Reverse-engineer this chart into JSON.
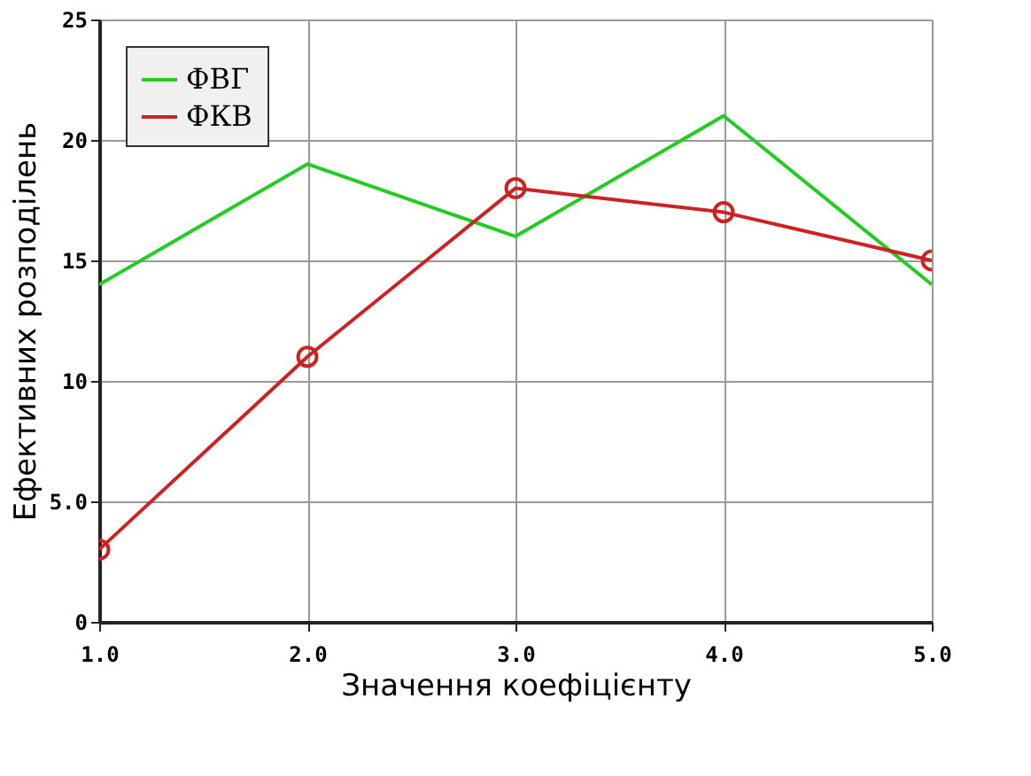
{
  "chart_data": {
    "type": "line",
    "xlabel": "Значення коефіцієнту",
    "ylabel": "Ефективних розподілень",
    "x": [
      1,
      2,
      3,
      4,
      5
    ],
    "series": [
      {
        "name": "ФВГ",
        "color": "#22cc22",
        "values": [
          14,
          19,
          16,
          21,
          14
        ],
        "marker": "none"
      },
      {
        "name": "ФКВ",
        "color": "#cc2222",
        "values": [
          3,
          11,
          18,
          17,
          15
        ],
        "marker": "circle"
      }
    ],
    "xlim": [
      1,
      5
    ],
    "xticks": [
      {
        "value": 1,
        "label": "1.0"
      },
      {
        "value": 2,
        "label": "2.0"
      },
      {
        "value": 3,
        "label": "3.0"
      },
      {
        "value": 4,
        "label": "4.0"
      },
      {
        "value": 5,
        "label": "5.0"
      }
    ],
    "ylim": [
      0,
      25
    ],
    "yticks": [
      0,
      {
        "value": 5,
        "label": "5.0"
      },
      10,
      15,
      20,
      25
    ],
    "grid": true,
    "legend": "top left",
    "line_style": "solid"
  }
}
